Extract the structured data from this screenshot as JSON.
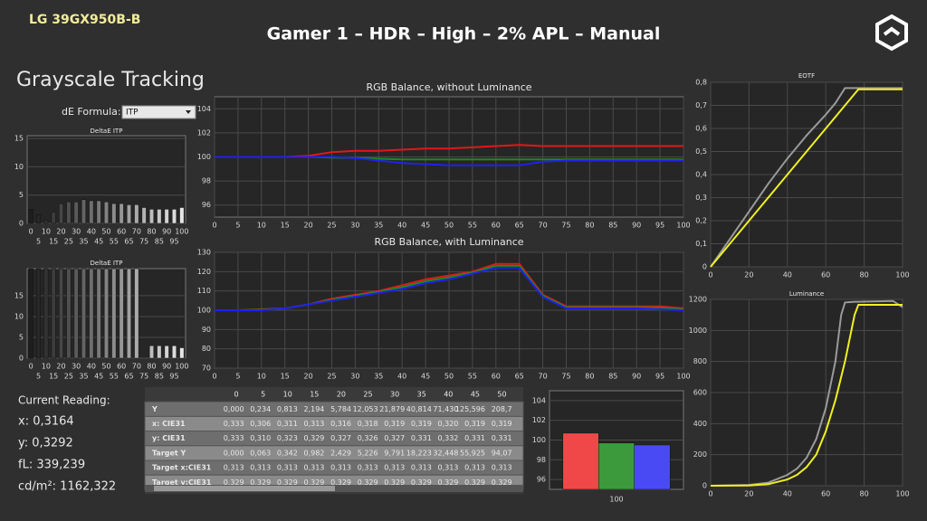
{
  "header": {
    "device": "LG 39GX950B-B",
    "title": "Gamer 1 – HDR – High – 2% APL – Manual"
  },
  "section_title": "Grayscale Tracking",
  "de_formula": {
    "label": "dE Formula:",
    "value": "ITP"
  },
  "readings": {
    "label": "Current Reading:",
    "lines": [
      "x: 0,3164",
      "y: 0,3292",
      "fL: 339,239",
      "cd/m²: 1162,322"
    ]
  },
  "table": {
    "columns": [
      "0",
      "5",
      "10",
      "15",
      "20",
      "25",
      "30",
      "35",
      "40",
      "45",
      "50"
    ],
    "rows": [
      [
        "Y",
        "0,000",
        "0,234",
        "0,813",
        "2,194",
        "5,784",
        "12,053",
        "21,879",
        "40,814",
        "71,430",
        "125,596",
        "208,7"
      ],
      [
        "x: CIE31",
        "0,333",
        "0,306",
        "0,311",
        "0,313",
        "0,316",
        "0,318",
        "0,319",
        "0,319",
        "0,320",
        "0,319",
        "0,319"
      ],
      [
        "y: CIE31",
        "0,333",
        "0,310",
        "0,323",
        "0,329",
        "0,327",
        "0,326",
        "0,327",
        "0,331",
        "0,332",
        "0,331",
        "0,331"
      ],
      [
        "Target Y",
        "0,000",
        "0,063",
        "0,342",
        "0,982",
        "2,429",
        "5,226",
        "9,791",
        "18,223",
        "32,448",
        "55,925",
        "94,07"
      ],
      [
        "Target x:CIE31",
        "0,313",
        "0,313",
        "0,313",
        "0,313",
        "0,313",
        "0,313",
        "0,313",
        "0,313",
        "0,313",
        "0,313",
        "0,313"
      ],
      [
        "Target y:CIE31",
        "0,329",
        "0,329",
        "0,329",
        "0,329",
        "0,329",
        "0,329",
        "0,329",
        "0,329",
        "0,329",
        "0,329",
        "0,329"
      ]
    ]
  },
  "chart_data": [
    {
      "type": "bar",
      "title": "DeltaE ITP",
      "categories": [
        "0",
        "5",
        "10",
        "15",
        "20",
        "25",
        "30",
        "35",
        "40",
        "45",
        "50",
        "55",
        "60",
        "65",
        "70",
        "75",
        "80",
        "85",
        "90",
        "95",
        "100"
      ],
      "values": [
        2.5,
        1.5,
        0.5,
        2,
        3.5,
        3.8,
        3.8,
        4.2,
        4,
        4,
        3.8,
        3.5,
        3.5,
        3.3,
        3.3,
        2.8,
        2.5,
        2.5,
        2.5,
        2.5,
        2.8
      ],
      "ylim": [
        0,
        15.5
      ],
      "yticks": [
        0,
        5,
        10,
        15
      ],
      "grid": true
    },
    {
      "type": "bar",
      "title": "DeltaE ITP",
      "categories": [
        "0",
        "5",
        "10",
        "15",
        "20",
        "25",
        "30",
        "35",
        "40",
        "45",
        "50",
        "55",
        "60",
        "65",
        "70",
        "75",
        "80",
        "85",
        "90",
        "95",
        "100"
      ],
      "values": [
        21.5,
        21.5,
        21.5,
        21.5,
        21.5,
        21.5,
        21.5,
        21.5,
        21.5,
        21.5,
        21.5,
        21.5,
        21.5,
        21.5,
        21.5,
        null,
        3,
        3,
        3,
        3,
        2.5
      ],
      "ylim": [
        0,
        21.5
      ],
      "yticks": [
        0,
        5,
        10,
        15
      ],
      "grid": true
    },
    {
      "type": "line",
      "title": "RGB Balance, without Luminance",
      "x": [
        0,
        5,
        10,
        15,
        20,
        25,
        30,
        35,
        40,
        45,
        50,
        55,
        60,
        65,
        70,
        75,
        80,
        85,
        90,
        95,
        100
      ],
      "series": [
        {
          "color": "#e01818",
          "values": [
            100,
            100,
            100,
            100,
            100.1,
            100.4,
            100.5,
            100.5,
            100.6,
            100.7,
            100.7,
            100.8,
            100.9,
            101,
            100.9,
            100.9,
            100.9,
            100.9,
            100.9,
            100.9,
            100.9
          ]
        },
        {
          "color": "#1c8c1c",
          "values": [
            100,
            100,
            100,
            100,
            100,
            99.95,
            99.9,
            99.85,
            99.8,
            99.8,
            99.8,
            99.8,
            99.8,
            99.8,
            99.8,
            99.8,
            99.8,
            99.8,
            99.8,
            99.8,
            99.8
          ]
        },
        {
          "color": "#2020ee",
          "values": [
            100,
            100,
            100,
            100,
            100,
            100,
            99.9,
            99.7,
            99.5,
            99.4,
            99.3,
            99.3,
            99.3,
            99.3,
            99.6,
            99.7,
            99.7,
            99.7,
            99.7,
            99.7,
            99.7
          ]
        }
      ],
      "xlim": [
        0,
        100
      ],
      "xticks": [
        0,
        5,
        10,
        15,
        20,
        25,
        30,
        35,
        40,
        45,
        50,
        55,
        60,
        65,
        70,
        75,
        80,
        85,
        90,
        95,
        100
      ],
      "ylim": [
        95,
        105
      ],
      "yticks": [
        96,
        98,
        100,
        102,
        104
      ],
      "grid": true
    },
    {
      "type": "line",
      "title": "RGB Balance, with Luminance",
      "x": [
        0,
        5,
        10,
        15,
        20,
        25,
        30,
        35,
        40,
        45,
        50,
        55,
        60,
        65,
        70,
        75,
        80,
        85,
        90,
        95,
        100
      ],
      "series": [
        {
          "color": "#e01818",
          "values": [
            100,
            100,
            100.5,
            101,
            103,
            106,
            108,
            110,
            113,
            116,
            118,
            120,
            124,
            124,
            108,
            102,
            102,
            102,
            102,
            102,
            101
          ]
        },
        {
          "color": "#1c8c1c",
          "values": [
            100,
            100,
            100.3,
            101,
            103,
            105.5,
            107.5,
            109.5,
            112,
            115,
            117,
            119.5,
            123,
            123,
            107.5,
            101.5,
            101.5,
            101.5,
            101.5,
            101.2,
            100.5
          ]
        },
        {
          "color": "#2020ee",
          "values": [
            100,
            100,
            100,
            101,
            103,
            105,
            107,
            109,
            111,
            114,
            116,
            119,
            122,
            122,
            107,
            101,
            101,
            101,
            101,
            100.5,
            100
          ]
        }
      ],
      "xlim": [
        0,
        100
      ],
      "xticks": [
        0,
        5,
        10,
        15,
        20,
        25,
        30,
        35,
        40,
        45,
        50,
        55,
        60,
        65,
        70,
        75,
        80,
        85,
        90,
        95,
        100
      ],
      "ylim": [
        70,
        130
      ],
      "yticks": [
        70,
        80,
        90,
        100,
        110,
        120,
        130
      ],
      "grid": true
    },
    {
      "type": "line",
      "title": "EOTF",
      "x": [
        0,
        10,
        20,
        30,
        40,
        50,
        60,
        65,
        70,
        77,
        80,
        100
      ],
      "series": [
        {
          "color": "#9a9a9a",
          "values": [
            0,
            0.12,
            0.24,
            0.36,
            0.47,
            0.57,
            0.66,
            0.71,
            0.775,
            0.775,
            0.775,
            0.775
          ]
        },
        {
          "color": "#f0f020",
          "values": [
            0,
            0.1,
            0.2,
            0.3,
            0.4,
            0.5,
            0.6,
            0.65,
            0.7,
            0.77,
            0.77,
            0.77
          ]
        }
      ],
      "xlim": [
        0,
        100
      ],
      "xticks": [
        0,
        20,
        40,
        60,
        80,
        100
      ],
      "ylim": [
        0,
        0.8
      ],
      "yticks": [
        0,
        {
          "value": 0.1,
          "label": "0,1"
        },
        {
          "value": 0.2,
          "label": "0,2"
        },
        {
          "value": 0.3,
          "label": "0,3"
        },
        {
          "value": 0.4,
          "label": "0,4"
        },
        {
          "value": 0.5,
          "label": "0,5"
        },
        {
          "value": 0.6,
          "label": "0,6"
        },
        {
          "value": 0.7,
          "label": "0,7"
        },
        {
          "value": 0.8,
          "label": "0,8"
        }
      ],
      "grid": true
    },
    {
      "type": "line",
      "title": "Luminance",
      "x": [
        0,
        20,
        30,
        40,
        45,
        50,
        55,
        60,
        65,
        68,
        70,
        75,
        77,
        95,
        100
      ],
      "series": [
        {
          "color": "#9a9a9a",
          "values": [
            0,
            5,
            20,
            70,
            110,
            180,
            300,
            500,
            800,
            1100,
            1180,
            1185,
            1185,
            1190,
            1150
          ]
        },
        {
          "color": "#f0f020",
          "values": [
            0,
            2,
            10,
            40,
            70,
            120,
            200,
            350,
            550,
            700,
            800,
            1100,
            1165,
            1165,
            1165
          ]
        }
      ],
      "xlim": [
        0,
        100
      ],
      "xticks": [
        0,
        20,
        40,
        60,
        80,
        100
      ],
      "ylim": [
        0,
        1200
      ],
      "yticks": [
        0,
        200,
        400,
        600,
        800,
        1000,
        1200
      ],
      "grid": true
    },
    {
      "type": "bar",
      "categories": [
        "100"
      ],
      "series": [
        {
          "color": "#f04848",
          "values": [
            100.7
          ]
        },
        {
          "color": "#3c9a3c",
          "values": [
            99.7
          ]
        },
        {
          "color": "#4a4af5",
          "values": [
            99.5
          ]
        }
      ],
      "ylim": [
        95,
        105
      ],
      "yticks": [
        96,
        98,
        100,
        102,
        104
      ],
      "grid": true
    }
  ]
}
